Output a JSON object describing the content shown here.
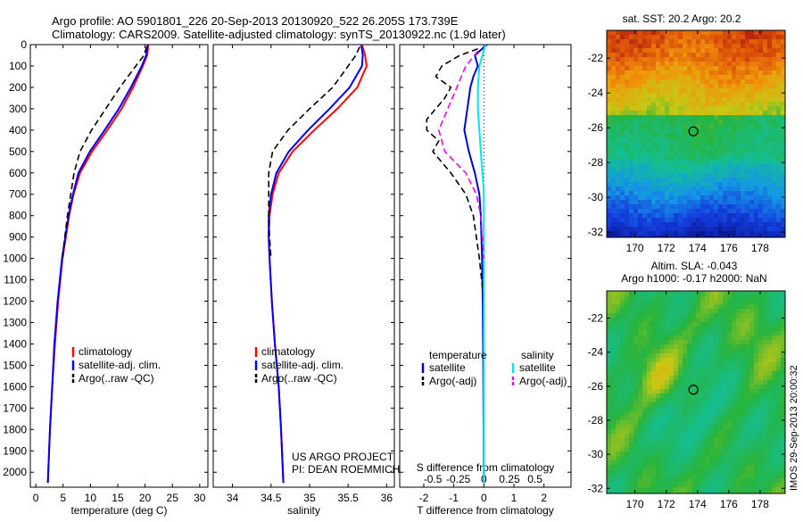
{
  "header": {
    "line1": "Argo profile: AO 5901801_226 20-Sep-2013 20130920_522 26.205S 173.739E",
    "line2": "Climatology: CARS2009. Satellite-adjusted climatology: synTS_20130922.nc (1.9d later)"
  },
  "colors": {
    "climatology": "#ff0000",
    "satellite": "#0000ee",
    "argo": "#000000",
    "t_satellite": "#0000cc",
    "s_satellite": "#00e5ee",
    "t_argo": "#000000",
    "s_argo": "#ee00ee"
  },
  "chart_data": [
    {
      "type": "line",
      "name": "temperature-profile",
      "xlabel": "temperature (deg C)",
      "ylabel": "",
      "xlim": [
        -1,
        31.5
      ],
      "ylim": [
        2070,
        0
      ],
      "xticks": [
        0,
        5,
        10,
        15,
        20,
        25,
        30
      ],
      "yticks": [
        0,
        100,
        200,
        300,
        400,
        500,
        600,
        700,
        800,
        900,
        1000,
        1100,
        1200,
        1300,
        1400,
        1500,
        1600,
        1700,
        1800,
        1900,
        2000
      ],
      "legend_position": "lower-middle",
      "series": [
        {
          "name": "climatology",
          "depth": [
            0,
            50,
            100,
            200,
            300,
            400,
            500,
            600,
            700,
            800,
            900,
            1000,
            1200,
            1400,
            1600,
            1800,
            2050
          ],
          "values": [
            20.6,
            20.4,
            19.6,
            17.8,
            15.7,
            13.1,
            10.3,
            8.1,
            6.9,
            6.1,
            5.5,
            4.9,
            4.1,
            3.5,
            3.0,
            2.6,
            2.2
          ]
        },
        {
          "name": "satellite-adj. clim.",
          "depth": [
            0,
            50,
            100,
            200,
            300,
            400,
            500,
            600,
            700,
            800,
            900,
            1000,
            1200,
            1400,
            1600,
            1800,
            2050
          ],
          "values": [
            20.5,
            20.2,
            19.4,
            17.4,
            15.2,
            12.6,
            9.9,
            7.8,
            6.8,
            6.0,
            5.4,
            4.8,
            4.0,
            3.4,
            3.0,
            2.6,
            2.2
          ]
        },
        {
          "name": "Argo(..raw -QC)",
          "depth": [
            10,
            50,
            100,
            200,
            300,
            400,
            500,
            600,
            700,
            800,
            900,
            1000
          ],
          "values": [
            20.3,
            19.8,
            18.3,
            15.4,
            12.8,
            10.2,
            8.1,
            7.0,
            6.4,
            5.8,
            5.3,
            4.9
          ]
        }
      ],
      "legend": [
        "climatology",
        "satellite-adj. clim.",
        "Argo(..raw -QC)"
      ]
    },
    {
      "type": "line",
      "name": "salinity-profile",
      "xlabel": "salinity",
      "xlim": [
        33.75,
        36.1
      ],
      "ylim": [
        2070,
        0
      ],
      "xticks": [
        34,
        34.5,
        35,
        35.5,
        36
      ],
      "legend_position": "lower-middle",
      "series": [
        {
          "name": "climatology",
          "depth": [
            0,
            50,
            100,
            200,
            300,
            400,
            500,
            600,
            700,
            800,
            900,
            1000,
            1200,
            1400,
            1600,
            1800,
            2050
          ],
          "values": [
            35.68,
            35.72,
            35.74,
            35.62,
            35.36,
            35.06,
            34.78,
            34.6,
            34.52,
            34.48,
            34.47,
            34.48,
            34.51,
            34.55,
            34.6,
            34.63,
            34.66
          ]
        },
        {
          "name": "satellite-adj. clim.",
          "depth": [
            0,
            50,
            100,
            200,
            300,
            400,
            500,
            600,
            700,
            800,
            900,
            1000,
            1200,
            1400,
            1600,
            1800,
            2050
          ],
          "values": [
            35.67,
            35.69,
            35.68,
            35.52,
            35.26,
            34.98,
            34.73,
            34.57,
            34.5,
            34.47,
            34.47,
            34.48,
            34.51,
            34.55,
            34.6,
            34.63,
            34.66
          ]
        },
        {
          "name": "Argo(..raw -QC)",
          "depth": [
            10,
            50,
            100,
            200,
            300,
            400,
            500,
            600,
            700,
            800,
            900,
            1000
          ],
          "values": [
            35.65,
            35.6,
            35.5,
            35.3,
            35.0,
            34.72,
            34.52,
            34.47,
            34.47,
            34.47,
            34.48,
            34.5
          ]
        }
      ],
      "legend": [
        "climatology",
        "satellite-adj. clim.",
        "Argo(..raw -QC)"
      ],
      "annotation": [
        "US ARGO PROJECT",
        "PI: DEAN ROEMMICH"
      ]
    },
    {
      "type": "line",
      "name": "difference-profile",
      "xlabel": "T difference from climatology",
      "x2label": "S difference from climatology",
      "xlim": [
        -2.8,
        2.9
      ],
      "ylim": [
        2070,
        0
      ],
      "xticks": [
        -2,
        -1,
        0,
        1,
        2
      ],
      "xticklabels": [
        "-2",
        "-1",
        "0",
        "1",
        "2"
      ],
      "x2ticks": [
        -1.7,
        -0.85,
        0,
        0.85,
        1.7
      ],
      "x2ticklabels": [
        "-0.5",
        "-0.25",
        "0",
        "0.25",
        "0.5"
      ],
      "series": [
        {
          "name": "temperature satellite",
          "depth": [
            0,
            50,
            100,
            150,
            200,
            300,
            400,
            500,
            600,
            700,
            800,
            900,
            1000,
            1200,
            1500,
            1800,
            2050
          ],
          "values": [
            0.1,
            -0.3,
            -0.2,
            -0.35,
            -0.45,
            -0.55,
            -0.65,
            -0.5,
            -0.3,
            -0.15,
            -0.1,
            -0.08,
            -0.06,
            -0.04,
            -0.02,
            -0.01,
            0
          ]
        },
        {
          "name": "temperature Argo(-adj)",
          "depth": [
            20,
            50,
            100,
            150,
            200,
            250,
            300,
            350,
            400,
            450,
            500,
            600,
            700,
            800,
            900,
            1000,
            1200
          ],
          "values": [
            -0.2,
            -0.8,
            -1.4,
            -1.6,
            -1.1,
            -1.3,
            -1.6,
            -1.9,
            -1.9,
            -1.5,
            -1.7,
            -1.1,
            -0.6,
            -0.35,
            -0.25,
            -0.15,
            0.0
          ]
        },
        {
          "name": "salinity satellite",
          "depth": [
            0,
            100,
            200,
            300,
            400,
            500,
            600,
            650,
            700,
            900,
            1100,
            1400,
            1700,
            2050
          ],
          "values": [
            0.05,
            -0.15,
            -0.2,
            -0.2,
            -0.15,
            -0.1,
            -0.05,
            -0.02,
            0,
            0,
            0,
            0,
            0,
            0
          ]
        },
        {
          "name": "salinity Argo(-adj)",
          "depth": [
            30,
            100,
            200,
            300,
            400,
            500,
            600,
            700,
            800,
            900,
            1000
          ],
          "values": [
            -0.2,
            -0.6,
            -0.9,
            -1.2,
            -1.5,
            -1.3,
            -0.6,
            -0.25,
            -0.1,
            -0.05,
            0
          ]
        }
      ],
      "legend_temperature": {
        "heading": "temperature",
        "items": [
          "satellite",
          "Argo(-adj)"
        ]
      },
      "legend_salinity": {
        "heading": "salinity",
        "items": [
          "satellite",
          "Argo(-adj)"
        ]
      }
    },
    {
      "type": "heatmap",
      "name": "sst-map",
      "title": "sat. SST: 20.2  Argo: 20.2",
      "xticks": [
        170,
        172,
        174,
        176,
        178
      ],
      "yticks": [
        -22,
        -24,
        -26,
        -28,
        -30,
        -32
      ],
      "xlim": [
        168.2,
        179.6
      ],
      "ylim": [
        -32.3,
        -20.4
      ],
      "marker": {
        "lon": 173.739,
        "lat": -26.205
      }
    },
    {
      "type": "heatmap",
      "name": "sla-map",
      "title_line1": "Altim. SLA: -0.043",
      "title_line2": "Argo h1000: -0.17 h2000: NaN",
      "xticks": [
        170,
        172,
        174,
        176,
        178
      ],
      "yticks": [
        -22,
        -24,
        -26,
        -28,
        -30,
        -32
      ],
      "xlim": [
        168.2,
        179.6
      ],
      "ylim": [
        -32.3,
        -20.4
      ],
      "marker": {
        "lon": 173.739,
        "lat": -26.205
      }
    }
  ],
  "footer_vertical": "IMOS 29-Sep-2013 20:00:32"
}
